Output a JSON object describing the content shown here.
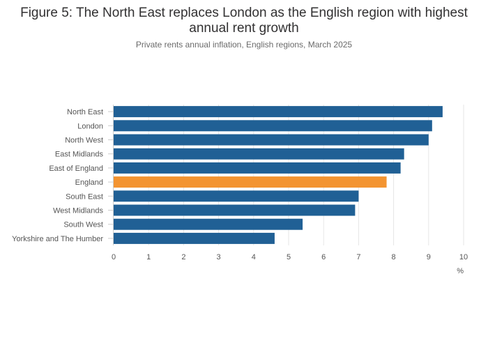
{
  "chart_data": {
    "type": "bar",
    "orientation": "horizontal",
    "title_line1": "Figure 5: The North East replaces London as the English region with highest",
    "title_line2": "annual rent growth",
    "subtitle": "Private rents annual inflation, English regions, March 2025",
    "xlabel": "%",
    "ylabel": "",
    "xlim": [
      0,
      10
    ],
    "xticks": [
      "0",
      "1",
      "2",
      "3",
      "4",
      "5",
      "6",
      "7",
      "8",
      "9",
      "10"
    ],
    "grid": true,
    "categories": [
      "North East",
      "London",
      "North West",
      "East Midlands",
      "East of England",
      "England",
      "South East",
      "West Midlands",
      "South West",
      "Yorkshire and The Humber"
    ],
    "values": [
      9.4,
      9.1,
      9.0,
      8.3,
      8.2,
      7.8,
      7.0,
      6.9,
      5.4,
      4.6
    ],
    "colors": {
      "default": "#206095",
      "highlight": "#f39431",
      "highlight_category": "England",
      "grid": "#e6e6e6",
      "axis": "#cccccc"
    }
  }
}
